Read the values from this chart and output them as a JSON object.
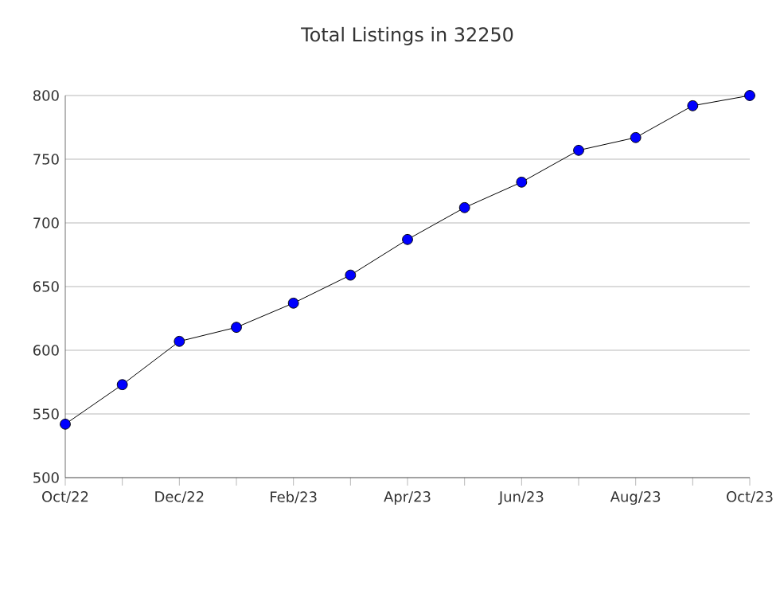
{
  "chart_data": {
    "type": "line",
    "title": "Total Listings in 32250",
    "x": [
      "2022-10",
      "2022-11",
      "2022-12",
      "2023-01",
      "2023-02",
      "2023-03",
      "2023-04",
      "2023-05",
      "2023-06",
      "2023-07",
      "2023-08",
      "2023-09",
      "2023-10"
    ],
    "series": [
      {
        "color": "#0000ff",
        "values": [
          542,
          573,
          607,
          618,
          637,
          659,
          687,
          712,
          732,
          757,
          767,
          792,
          800
        ]
      }
    ],
    "xlim": [
      "2022-10",
      "2023-10"
    ],
    "xticks": [
      {
        "value": "2022-10",
        "label": "Oct/22"
      },
      {
        "value": "2022-11",
        "label": null
      },
      {
        "value": "2022-12",
        "label": "Dec/22"
      },
      {
        "value": "2023-01",
        "label": null
      },
      {
        "value": "2023-02",
        "label": "Feb/23"
      },
      {
        "value": "2023-03",
        "label": null
      },
      {
        "value": "2023-04",
        "label": "Apr/23"
      },
      {
        "value": "2023-05",
        "label": null
      },
      {
        "value": "2023-06",
        "label": "Jun/23"
      },
      {
        "value": "2023-07",
        "label": null
      },
      {
        "value": "2023-08",
        "label": "Aug/23"
      },
      {
        "value": "2023-09",
        "label": null
      },
      {
        "value": "2023-10",
        "label": "Oct/23"
      }
    ],
    "ylim": [
      500,
      800
    ],
    "yticks": [
      500,
      550,
      600,
      650,
      700,
      750,
      800
    ],
    "grid": "y",
    "marker": "circle",
    "line_style": "solid"
  }
}
